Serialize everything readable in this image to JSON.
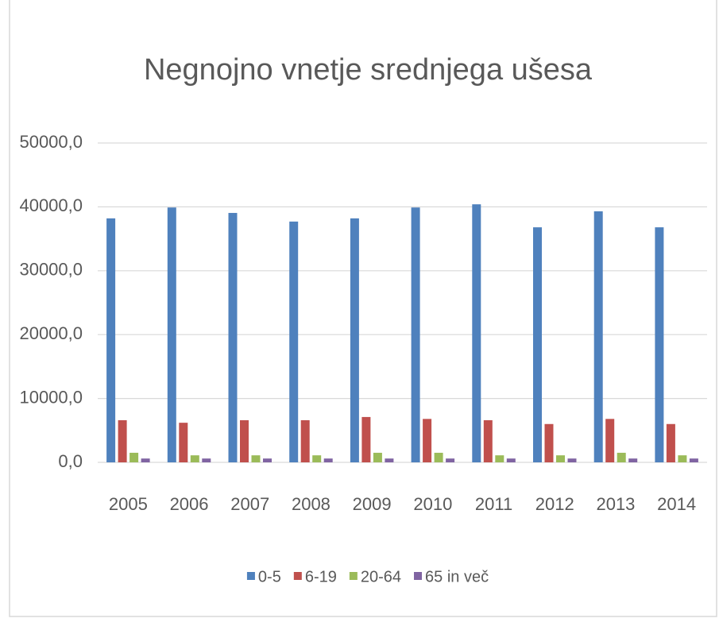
{
  "chart_data": {
    "type": "bar",
    "title": "Negnojno vnetje srednjega ušesa",
    "categories": [
      "2005",
      "2006",
      "2007",
      "2008",
      "2009",
      "2010",
      "2011",
      "2012",
      "2013",
      "2014"
    ],
    "series": [
      {
        "name": "0-5",
        "color": "#4f81bd",
        "values": [
          38200,
          39900,
          39050,
          37700,
          38200,
          39900,
          40400,
          36800,
          39300,
          36800
        ]
      },
      {
        "name": "6-19",
        "color": "#c0504d",
        "values": [
          6600,
          6200,
          6600,
          6600,
          7100,
          6800,
          6600,
          6000,
          6800,
          6000
        ]
      },
      {
        "name": "20-64",
        "color": "#9bbb59",
        "values": [
          1500,
          1100,
          1100,
          1100,
          1500,
          1500,
          1100,
          1100,
          1500,
          1100
        ]
      },
      {
        "name": "65 in več",
        "color": "#8064a2",
        "values": [
          600,
          600,
          600,
          600,
          600,
          600,
          600,
          600,
          600,
          600
        ]
      }
    ],
    "ylim": [
      0,
      50000
    ],
    "yticks": [
      {
        "value": 0,
        "label": "0,0"
      },
      {
        "value": 10000,
        "label": "10000,0"
      },
      {
        "value": 20000,
        "label": "20000,0"
      },
      {
        "value": 30000,
        "label": "30000,0"
      },
      {
        "value": 40000,
        "label": "40000,0"
      },
      {
        "value": 50000,
        "label": "50000,0"
      }
    ],
    "grid": true,
    "legend": "bottom"
  }
}
